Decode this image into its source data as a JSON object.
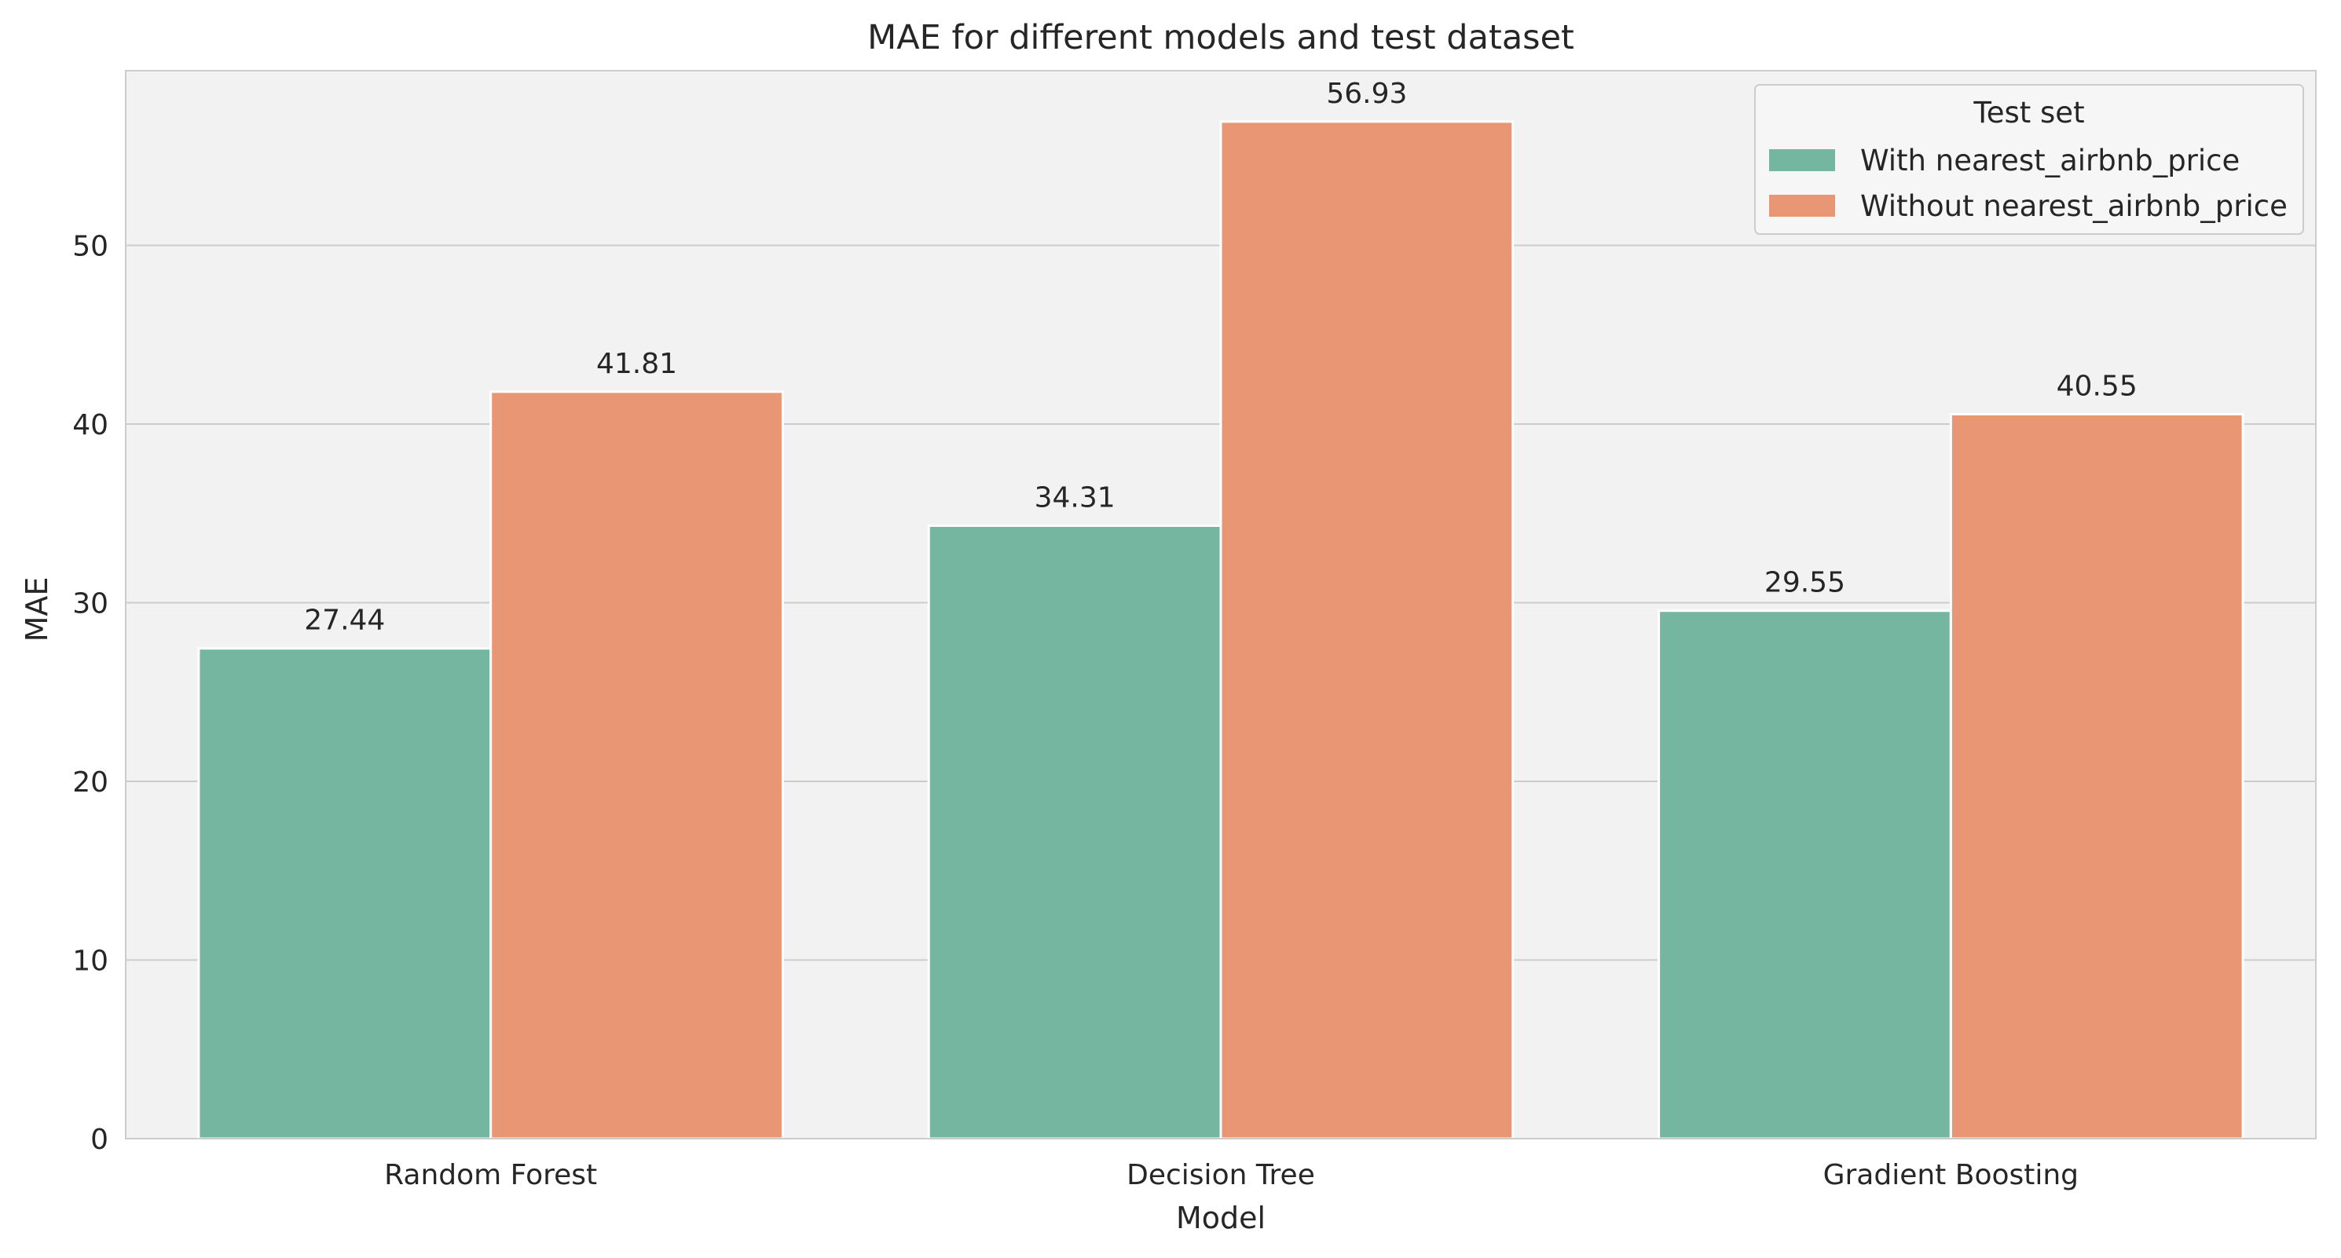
{
  "chart_data": {
    "type": "bar",
    "title": "MAE for different models and test dataset",
    "xlabel": "Model",
    "ylabel": "MAE",
    "categories": [
      "Random Forest",
      "Decision Tree",
      "Gradient Boosting"
    ],
    "series": [
      {
        "name": "With nearest_airbnb_price",
        "values": [
          27.44,
          34.31,
          29.55
        ],
        "color": "#74b6a0"
      },
      {
        "name": "Without nearest_airbnb_price",
        "values": [
          41.81,
          56.93,
          40.55
        ],
        "color": "#e99675"
      }
    ],
    "value_labels": [
      [
        "27.44",
        "34.31",
        "29.55"
      ],
      [
        "41.81",
        "56.93",
        "40.55"
      ]
    ],
    "ylim": [
      0,
      59.78
    ],
    "yticks": [
      0,
      10,
      20,
      30,
      40,
      50
    ],
    "ytick_labels": [
      "0",
      "10",
      "20",
      "30",
      "40",
      "50"
    ],
    "grid": true,
    "legend": {
      "title": "Test set",
      "placement": "top-right"
    },
    "colors": {
      "plot_background": "#f2f2f2",
      "grid": "#cccccc",
      "frame": "#cccccc",
      "text": "#262626"
    }
  }
}
